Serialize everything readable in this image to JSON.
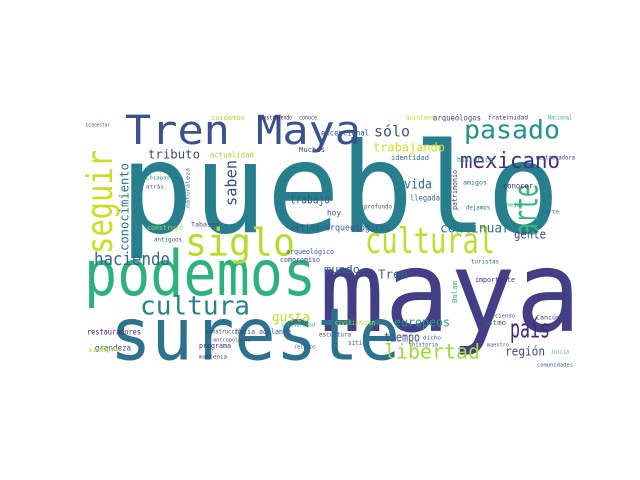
{
  "chart_data": {
    "type": "wordcloud",
    "words": [
      {
        "text": "pueblo",
        "color": "#277f8e"
      },
      {
        "text": "maya",
        "color": "#433e85"
      },
      {
        "text": "sureste",
        "color": "#2c718e"
      },
      {
        "text": "podemos",
        "color": "#2db27d"
      },
      {
        "text": "Tren Maya",
        "color": "#3b528b"
      },
      {
        "text": "siglo",
        "color": "#b5de2b"
      },
      {
        "text": "cultural",
        "color": "#bddf26"
      },
      {
        "text": "seguir",
        "color": "#c8e020"
      },
      {
        "text": "arte",
        "color": "#35b779"
      },
      {
        "text": "pasado",
        "color": "#21918c"
      },
      {
        "text": "mexicano",
        "color": "#46327e"
      },
      {
        "text": "cultura",
        "color": "#26828e"
      },
      {
        "text": "haciendo",
        "color": "#31688e"
      },
      {
        "text": "libertad",
        "color": "#a0da39"
      },
      {
        "text": "país",
        "color": "#482475"
      },
      {
        "text": "sólo",
        "color": "#3b528b"
      },
      {
        "text": "saben",
        "color": "#3e4989"
      },
      {
        "text": "tributo",
        "color": "#414487"
      },
      {
        "text": "vida",
        "color": "#31688e"
      },
      {
        "text": "trabajando",
        "color": "#d0e11c"
      },
      {
        "text": "gusta",
        "color": "#c2df23"
      },
      {
        "text": "continuar",
        "color": "#2a788e"
      },
      {
        "text": "gente",
        "color": "#3e4a89"
      },
      {
        "text": "mundo",
        "color": "#31688e"
      },
      {
        "text": "europeos",
        "color": "#1f9e89"
      },
      {
        "text": "tiempo",
        "color": "#3b528b"
      },
      {
        "text": "región",
        "color": "#3e4989"
      },
      {
        "text": "conocimiento",
        "color": "#2a788e"
      },
      {
        "text": "Tren",
        "color": "#31688e"
      },
      {
        "text": "trabajo",
        "color": "#375a8c"
      },
      {
        "text": "sitios arqueológicos",
        "color": "#3b528b"
      },
      {
        "text": "restauradores",
        "color": "#481f70"
      },
      {
        "text": "grandeza",
        "color": "#3b528b"
      },
      {
        "text": "bienestar",
        "color": "#31688e"
      },
      {
        "text": "cuidemos",
        "color": "#a8db34"
      },
      {
        "text": "construyendo",
        "color": "#482878"
      },
      {
        "text": "conoce",
        "color": "#414487"
      },
      {
        "text": "Quintana",
        "color": "#b8de29"
      },
      {
        "text": "arqueólogos",
        "color": "#3e4989"
      },
      {
        "text": "fraternidad",
        "color": "#46327e"
      },
      {
        "text": "Nacional",
        "color": "#35b779"
      },
      {
        "text": "excepcional",
        "color": "#3b528b"
      },
      {
        "text": "Muchas",
        "color": "#3e4989"
      },
      {
        "text": "identidad",
        "color": "#2c728e"
      },
      {
        "text": "histórico",
        "color": "#21918c"
      },
      {
        "text": "actualidad",
        "color": "#a5db36"
      },
      {
        "text": "llegada",
        "color": "#31688e"
      },
      {
        "text": "hoy",
        "color": "#3b528b"
      },
      {
        "text": "patrimonio",
        "color": "#46327e"
      },
      {
        "text": "amigos",
        "color": "#31688e"
      },
      {
        "text": "conocer",
        "color": "#472d7b"
      },
      {
        "text": "dejamos",
        "color": "#2a788e"
      },
      {
        "text": "mejor",
        "color": "#22a884"
      },
      {
        "text": "norte",
        "color": "#3b528b"
      },
      {
        "text": "restauradora",
        "color": "#3e4989"
      },
      {
        "text": "atrás",
        "color": "#3b528b"
      },
      {
        "text": "Chiapas",
        "color": "#21918c"
      },
      {
        "text": "naturaleza",
        "color": "#31688e"
      },
      {
        "text": "Tabasco",
        "color": "#414487"
      },
      {
        "text": "construyó",
        "color": "#a0da39"
      },
      {
        "text": "antiguos",
        "color": "#31688e"
      },
      {
        "text": "compromiso",
        "color": "#3e4989"
      },
      {
        "text": "arqueológico",
        "color": "#3b528b"
      },
      {
        "text": "construcción",
        "color": "#46327e"
      },
      {
        "text": "hacia adelante",
        "color": "#3b528b"
      },
      {
        "text": "solidaridad",
        "color": "#2db27d"
      },
      {
        "text": "programa",
        "color": "#482878"
      },
      {
        "text": "antropólogos",
        "color": "#3e4989"
      },
      {
        "text": "siempre",
        "color": "#b5de2b"
      },
      {
        "text": "turistas",
        "color": "#2a788e"
      },
      {
        "text": "importante",
        "color": "#46327e"
      },
      {
        "text": "quiero",
        "color": "#3b528b"
      },
      {
        "text": "Balam",
        "color": "#35b779"
      },
      {
        "text": "historia",
        "color": "#31688e"
      },
      {
        "text": "dicho",
        "color": "#3e4989"
      },
      {
        "text": "istmo",
        "color": "#31688e"
      },
      {
        "text": "maestro",
        "color": "#3e4989"
      },
      {
        "text": "creciendo",
        "color": "#3e4989"
      },
      {
        "text": "Cancún",
        "color": "#3e4989"
      },
      {
        "text": "comunidades",
        "color": "#3b528b"
      },
      {
        "text": "inicia",
        "color": "#22a884"
      },
      {
        "text": "civilización",
        "color": "#b5de2b"
      },
      {
        "text": "escultura",
        "color": "#3e4989"
      },
      {
        "text": "sitio",
        "color": "#31688e"
      },
      {
        "text": "mantenía",
        "color": "#482475"
      },
      {
        "text": "profundo",
        "color": "#3e4989"
      },
      {
        "text": "relatos",
        "color": "#3b528b"
      }
    ]
  }
}
